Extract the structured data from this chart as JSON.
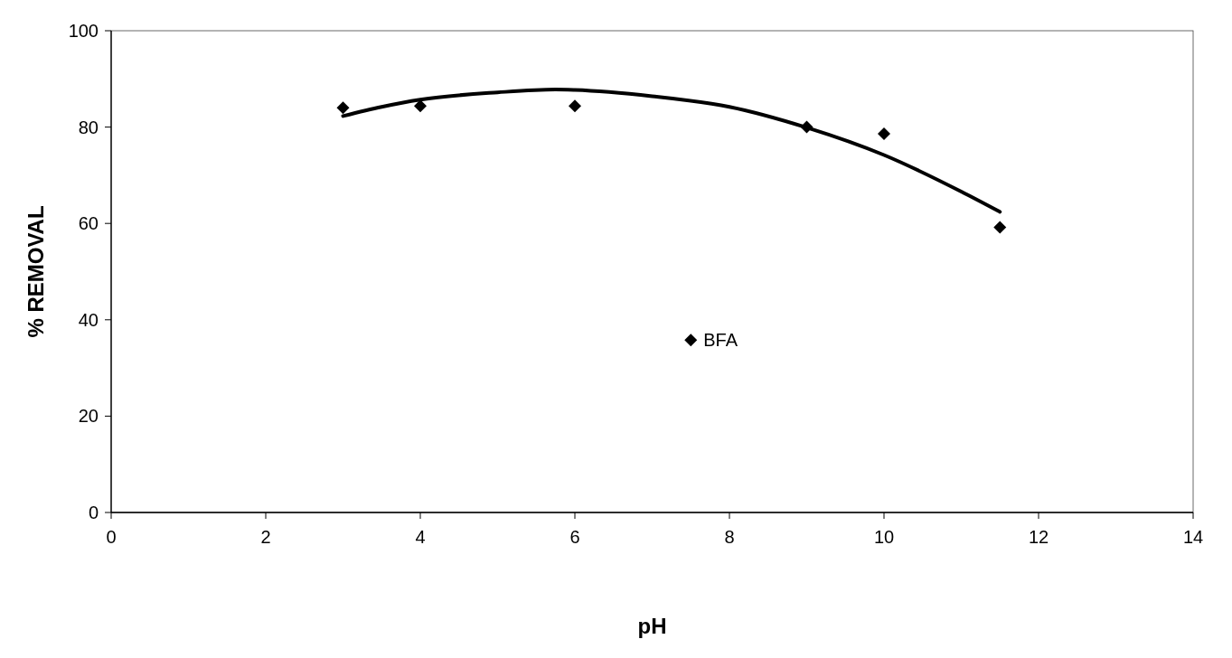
{
  "chart_data": {
    "type": "scatter",
    "xlabel": "pH",
    "ylabel": "% REMOVAL",
    "xlim": [
      0,
      14
    ],
    "xticks": [
      0,
      2,
      4,
      6,
      8,
      10,
      12,
      14
    ],
    "ylim": [
      0,
      100
    ],
    "yticks": [
      0,
      20,
      40,
      60,
      80,
      100
    ],
    "grid": false,
    "series": [
      {
        "color": "#000000",
        "marker": "diamond",
        "x": [
          3,
          4,
          6,
          7.5,
          9,
          10,
          11.5
        ],
        "values": [
          84.0,
          84.4,
          84.4,
          35.8,
          80.0,
          78.6,
          59.2
        ]
      },
      {
        "type": "line",
        "color": "#000000",
        "marker": "none",
        "line_style": "solid",
        "x": [
          3,
          3.5,
          4,
          5,
          5.75,
          6,
          7,
          8,
          9,
          10,
          11,
          11.5
        ],
        "values": [
          82.3,
          84.2,
          85.7,
          87.2,
          87.8,
          87.7,
          86.4,
          84.2,
          79.9,
          74.2,
          66.6,
          62.4
        ]
      }
    ],
    "annotations": [
      {
        "text": "BFA",
        "x": 7.5,
        "y": 35.8
      }
    ]
  }
}
